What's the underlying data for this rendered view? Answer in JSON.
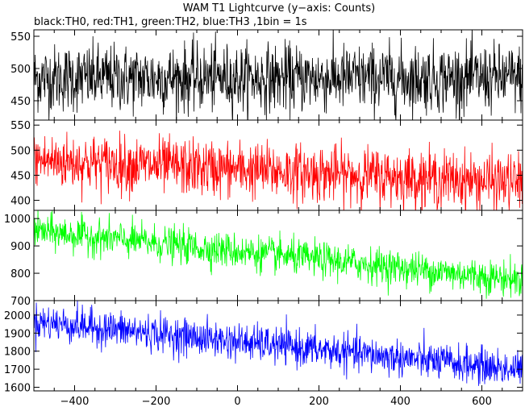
{
  "title": "WAM T1 Lightcurve (y−axis: Counts)",
  "subtitle": "black:TH0, red:TH1, green:TH2, blue:TH3 ,1bin = 1s",
  "chart_data": [
    {
      "type": "line",
      "series": [
        {
          "color": "#000000",
          "trend": [
            485,
            485
          ],
          "noise": 26
        }
      ],
      "xlim": [
        -500,
        700
      ],
      "ylim": [
        420,
        560
      ],
      "yticks": [
        450,
        500,
        550
      ],
      "xticks": [
        -400,
        -200,
        0,
        200,
        400,
        600
      ],
      "show_xtick_labels": false
    },
    {
      "type": "line",
      "series": [
        {
          "color": "#ff0000",
          "trend": [
            480,
            435
          ],
          "noise": 28
        }
      ],
      "xlim": [
        -500,
        700
      ],
      "ylim": [
        380,
        560
      ],
      "yticks": [
        400,
        450,
        500,
        550
      ],
      "xticks": [
        -400,
        -200,
        0,
        200,
        400,
        600
      ],
      "show_xtick_labels": false
    },
    {
      "type": "line",
      "series": [
        {
          "color": "#00ff00",
          "trend": [
            955,
            775
          ],
          "noise": 32
        }
      ],
      "xlim": [
        -500,
        700
      ],
      "ylim": [
        700,
        1030
      ],
      "yticks": [
        700,
        800,
        900,
        1000
      ],
      "xticks": [
        -400,
        -200,
        0,
        200,
        400,
        600
      ],
      "show_xtick_labels": false
    },
    {
      "type": "line",
      "series": [
        {
          "color": "#0000ff",
          "trend": [
            1965,
            1695
          ],
          "noise": 50
        }
      ],
      "xlim": [
        -500,
        700
      ],
      "ylim": [
        1580,
        2080
      ],
      "yticks": [
        1600,
        1700,
        1800,
        1900,
        2000
      ],
      "xticks": [
        -400,
        -200,
        0,
        200,
        400,
        600
      ],
      "xtick_labels": [
        "−400",
        "−200",
        "0",
        "200",
        "400",
        "600"
      ],
      "show_xtick_labels": true
    }
  ]
}
